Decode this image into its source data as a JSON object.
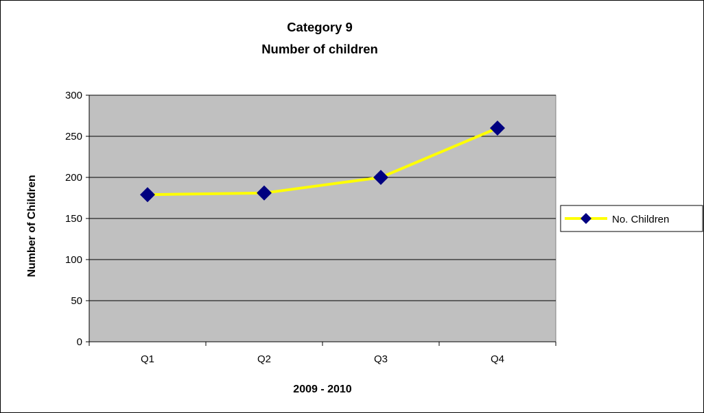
{
  "chart_data": {
    "type": "line",
    "title": "Category 9",
    "subtitle": "Number of children",
    "xlabel": "2009 - 2010",
    "ylabel": "Number of Children",
    "categories": [
      "Q1",
      "Q2",
      "Q3",
      "Q4"
    ],
    "series": [
      {
        "name": "No. Children",
        "values": [
          179,
          181,
          200,
          260
        ],
        "color": "#ffff00",
        "marker": "diamond",
        "marker_color": "#000080"
      }
    ],
    "ylim": [
      0,
      300
    ],
    "yticks": [
      0,
      50,
      100,
      150,
      200,
      250,
      300
    ],
    "grid": true,
    "plot_background": "#c0c0c0",
    "legend_position": "right"
  }
}
